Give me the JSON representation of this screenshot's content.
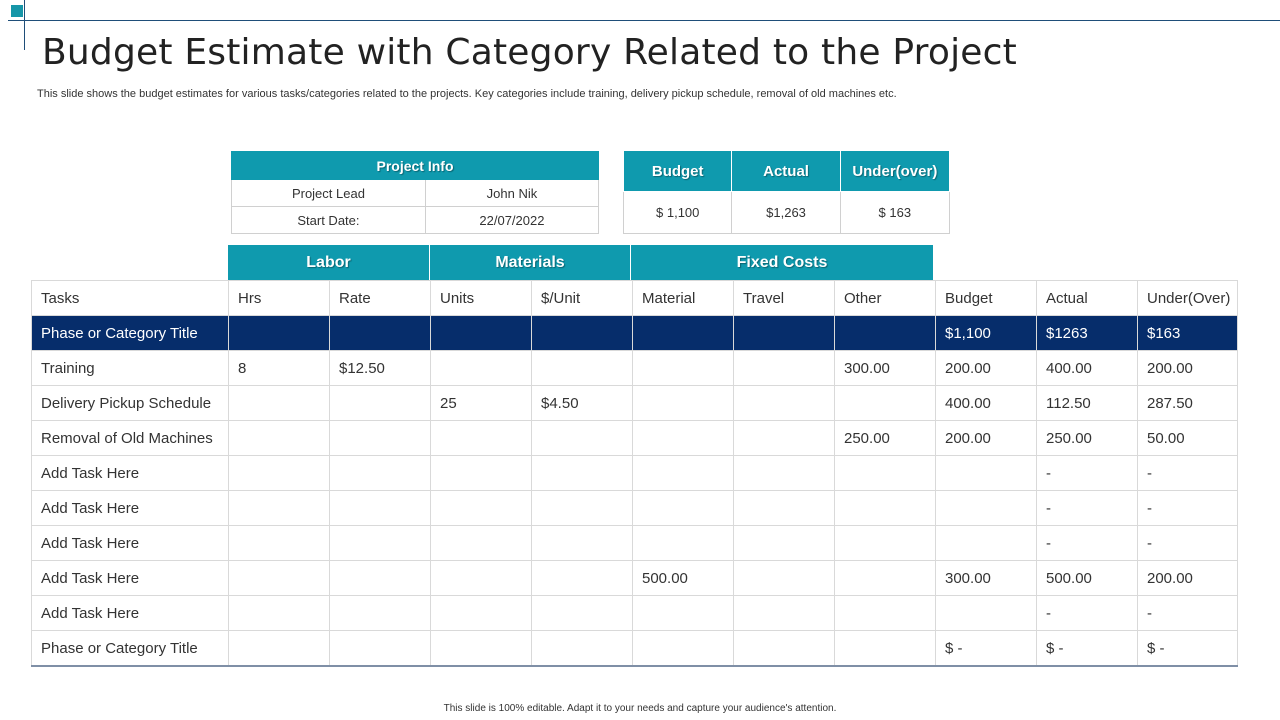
{
  "slide": {
    "title": "Budget Estimate with Category Related to the Project",
    "subtitle": "This slide shows the budget  estimates for various tasks/categories related to the projects. Key categories include training, delivery pickup schedule, removal of old machines etc.",
    "footer": "This slide is 100% editable.  Adapt it to your needs and capture your audience's attention.",
    "accent_color": "#0f9aae",
    "dark_row_color": "#062d6b"
  },
  "project_info": {
    "header": "Project Info",
    "rows": [
      {
        "label": "Project Lead",
        "value": "John Nik"
      },
      {
        "label": "Start Date:",
        "value": "22/07/2022"
      }
    ]
  },
  "budget_summary": {
    "headers": [
      "Budget",
      "Actual",
      "Under(over)"
    ],
    "values": [
      "$ 1,100",
      "$1,263",
      "$ 163"
    ]
  },
  "groups": {
    "labor": "Labor",
    "materials": "Materials",
    "fixed_costs": "Fixed Costs"
  },
  "main_table": {
    "columns": [
      "Tasks",
      "Hrs",
      "Rate",
      "Units",
      "$/Unit",
      "Material",
      "Travel",
      "Other",
      "Budget",
      "Actual",
      "Under(Over)"
    ],
    "rows": [
      [
        "Phase or Category Title",
        "",
        "",
        "",
        "",
        "",
        "",
        "",
        "$1,100",
        "$1263",
        "$163"
      ],
      [
        "Training",
        "8",
        "$12.50",
        "",
        "",
        "",
        "",
        "300.00",
        "200.00",
        "400.00",
        "200.00"
      ],
      [
        "Delivery Pickup Schedule",
        "",
        "",
        "25",
        "$4.50",
        "",
        "",
        "",
        "400.00",
        "112.50",
        "287.50"
      ],
      [
        "Removal of Old Machines",
        "",
        "",
        "",
        "",
        "",
        "",
        "250.00",
        "200.00",
        "250.00",
        "50.00"
      ],
      [
        "Add Task Here",
        "",
        "",
        "",
        "",
        "",
        "",
        "",
        "",
        "-",
        "-"
      ],
      [
        "Add Task Here",
        "",
        "",
        "",
        "",
        "",
        "",
        "",
        "",
        "-",
        "-"
      ],
      [
        "Add Task Here",
        "",
        "",
        "",
        "",
        "",
        "",
        "",
        "",
        "-",
        "-"
      ],
      [
        "Add Task Here",
        "",
        "",
        "",
        "",
        "500.00",
        "",
        "",
        "300.00",
        "500.00",
        "200.00"
      ],
      [
        "Add Task Here",
        "",
        "",
        "",
        "",
        "",
        "",
        "",
        "",
        "-",
        "-"
      ],
      [
        "Phase or Category Title",
        "",
        "",
        "",
        "",
        "",
        "",
        "",
        "$ -",
        "$ -",
        "$ -"
      ]
    ]
  }
}
